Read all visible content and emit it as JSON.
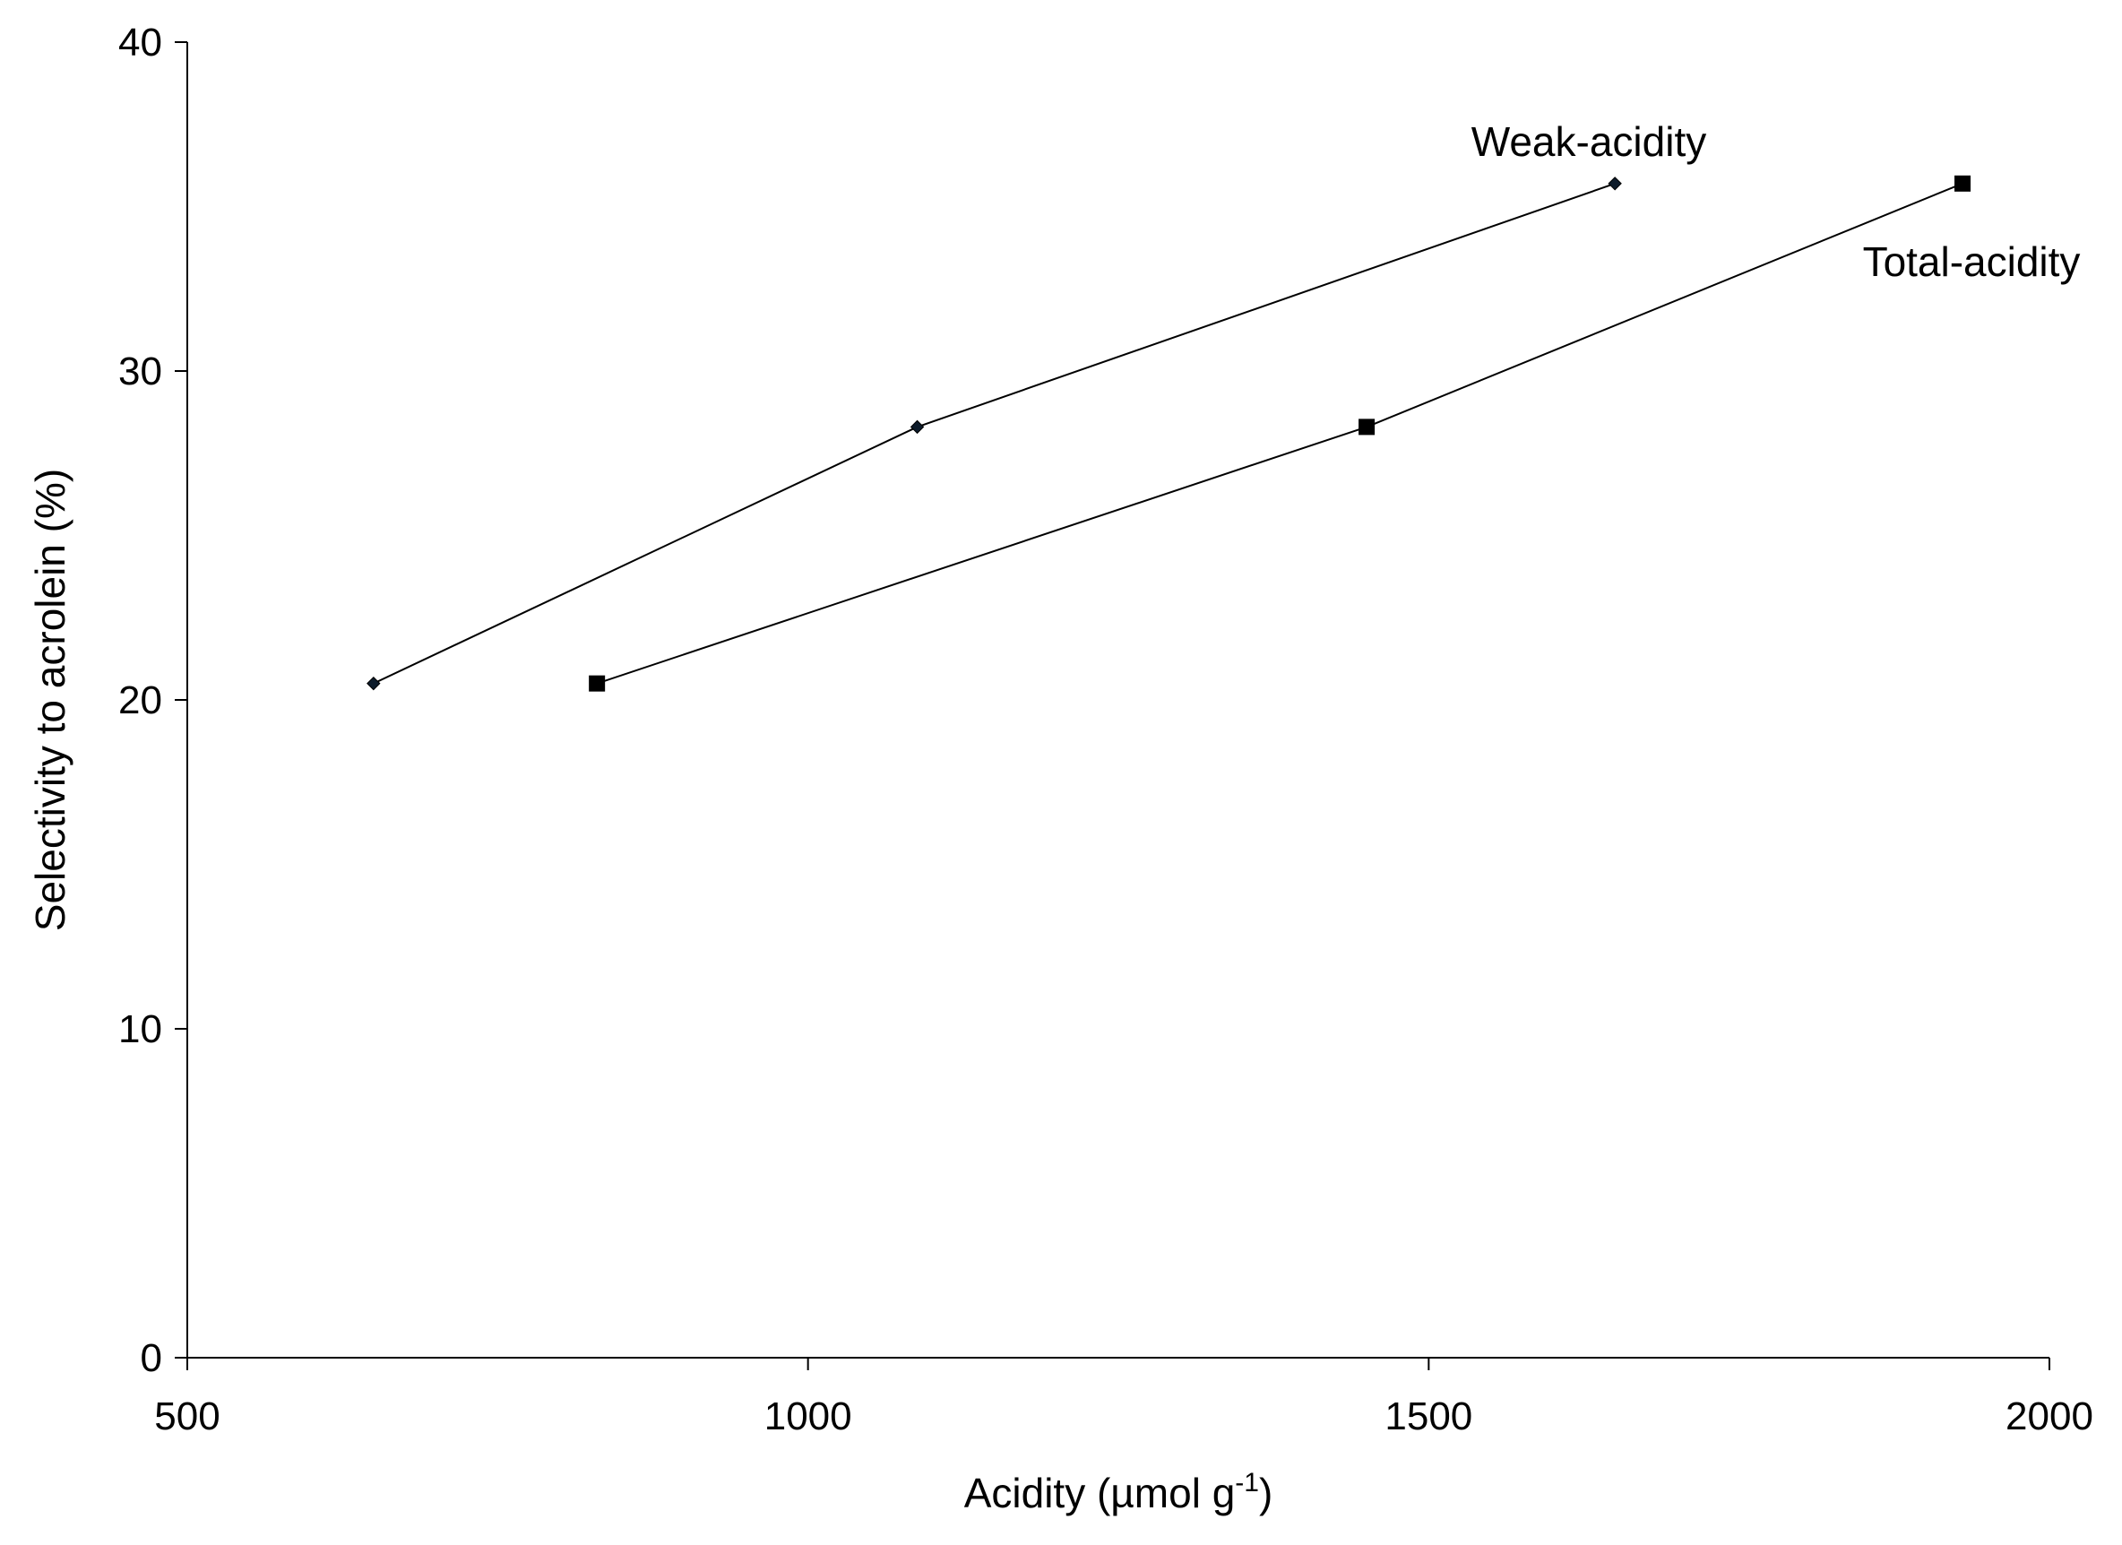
{
  "chart_data": {
    "type": "line",
    "xlabel": {
      "text": "Acidity (µmol g",
      "superscript": "-1",
      "suffix": ")"
    },
    "ylabel": "Selectivity to acrolein (%)",
    "xlim": [
      500,
      2000
    ],
    "ylim": [
      0,
      40
    ],
    "x_ticks": [
      500,
      1000,
      1500,
      2000
    ],
    "y_ticks": [
      0,
      10,
      20,
      30,
      40
    ],
    "grid": false,
    "series": [
      {
        "name": "Weak-acidity",
        "marker": "diamond",
        "color": "#000000",
        "x": [
          650,
          1088,
          1650
        ],
        "y": [
          20.5,
          28.3,
          35.7
        ]
      },
      {
        "name": "Total-acidity",
        "marker": "square",
        "color": "#000000",
        "x": [
          830,
          1450,
          1930
        ],
        "y": [
          20.5,
          28.3,
          35.7
        ]
      }
    ]
  }
}
